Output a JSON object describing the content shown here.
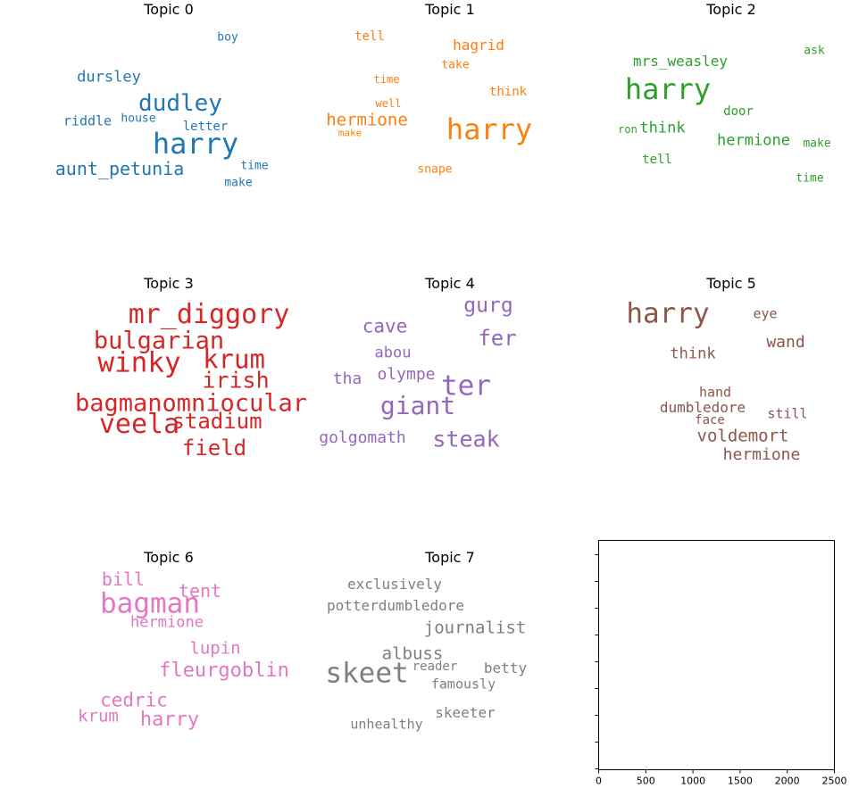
{
  "chart_data": [
    {
      "type": "wordcloud",
      "title": "Topic 0",
      "color": "#1f77b4",
      "words": [
        {
          "text": "harry",
          "size": 32
        },
        {
          "text": "dudley",
          "size": 26
        },
        {
          "text": "aunt_petunia",
          "size": 20
        },
        {
          "text": "dursley",
          "size": 17
        },
        {
          "text": "riddle",
          "size": 15
        },
        {
          "text": "letter",
          "size": 14
        },
        {
          "text": "house",
          "size": 13
        },
        {
          "text": "boy",
          "size": 13
        },
        {
          "text": "time",
          "size": 13
        },
        {
          "text": "make",
          "size": 13
        }
      ]
    },
    {
      "type": "wordcloud",
      "title": "Topic 1",
      "color": "#ff7f0e",
      "words": [
        {
          "text": "harry",
          "size": 32
        },
        {
          "text": "hermione",
          "size": 19
        },
        {
          "text": "hagrid",
          "size": 16
        },
        {
          "text": "think",
          "size": 14
        },
        {
          "text": "tell",
          "size": 14
        },
        {
          "text": "take",
          "size": 13
        },
        {
          "text": "snape",
          "size": 13
        },
        {
          "text": "time",
          "size": 12
        },
        {
          "text": "well",
          "size": 12
        },
        {
          "text": "make",
          "size": 11
        }
      ]
    },
    {
      "type": "wordcloud",
      "title": "Topic 2",
      "color": "#2ca02c",
      "words": [
        {
          "text": "harry",
          "size": 32
        },
        {
          "text": "hermione",
          "size": 17
        },
        {
          "text": "mrs_weasley",
          "size": 16
        },
        {
          "text": "think",
          "size": 17
        },
        {
          "text": "door",
          "size": 14
        },
        {
          "text": "tell",
          "size": 14
        },
        {
          "text": "ask",
          "size": 13
        },
        {
          "text": "make",
          "size": 13
        },
        {
          "text": "time",
          "size": 13
        },
        {
          "text": "ron",
          "size": 12
        }
      ]
    },
    {
      "type": "wordcloud",
      "title": "Topic 3",
      "color": "#d62728",
      "words": [
        {
          "text": "winky",
          "size": 31
        },
        {
          "text": "veela",
          "size": 30
        },
        {
          "text": "mr_diggory",
          "size": 30
        },
        {
          "text": "krum",
          "size": 29
        },
        {
          "text": "bulgarian",
          "size": 27
        },
        {
          "text": "bagmanomniocular",
          "size": 27
        },
        {
          "text": "irish",
          "size": 25
        },
        {
          "text": "stadium",
          "size": 24
        },
        {
          "text": "field",
          "size": 24
        }
      ]
    },
    {
      "type": "wordcloud",
      "title": "Topic 4",
      "color": "#9467bd",
      "words": [
        {
          "text": "ter",
          "size": 31
        },
        {
          "text": "giant",
          "size": 28
        },
        {
          "text": "steak",
          "size": 25
        },
        {
          "text": "fer",
          "size": 24
        },
        {
          "text": "gurg",
          "size": 23
        },
        {
          "text": "cave",
          "size": 21
        },
        {
          "text": "olympe",
          "size": 18
        },
        {
          "text": "tha",
          "size": 18
        },
        {
          "text": "abou",
          "size": 17
        },
        {
          "text": "golgomath",
          "size": 18
        }
      ]
    },
    {
      "type": "wordcloud",
      "title": "Topic 5",
      "color": "#8c564b",
      "words": [
        {
          "text": "harry",
          "size": 31
        },
        {
          "text": "voldemort",
          "size": 19
        },
        {
          "text": "hermione",
          "size": 18
        },
        {
          "text": "wand",
          "size": 18
        },
        {
          "text": "think",
          "size": 17
        },
        {
          "text": "dumbledore",
          "size": 16
        },
        {
          "text": "eye",
          "size": 15
        },
        {
          "text": "hand",
          "size": 15
        },
        {
          "text": "still",
          "size": 15
        },
        {
          "text": "face",
          "size": 14
        }
      ]
    },
    {
      "type": "wordcloud",
      "title": "Topic 6",
      "color": "#e377c2",
      "words": [
        {
          "text": "bagman",
          "size": 31
        },
        {
          "text": "fleurgoblin",
          "size": 22
        },
        {
          "text": "harry",
          "size": 22
        },
        {
          "text": "cedric",
          "size": 21
        },
        {
          "text": "tent",
          "size": 20
        },
        {
          "text": "bill",
          "size": 20
        },
        {
          "text": "krum",
          "size": 19
        },
        {
          "text": "lupin",
          "size": 19
        },
        {
          "text": "hermione",
          "size": 17
        }
      ]
    },
    {
      "type": "wordcloud",
      "title": "Topic 7",
      "color": "#7f7f7f",
      "words": [
        {
          "text": "skeet",
          "size": 31
        },
        {
          "text": "journalist",
          "size": 19
        },
        {
          "text": "albuss",
          "size": 19
        },
        {
          "text": "potterdumbledore",
          "size": 16
        },
        {
          "text": "exclusively",
          "size": 16
        },
        {
          "text": "betty",
          "size": 16
        },
        {
          "text": "skeeter",
          "size": 16
        },
        {
          "text": "famously",
          "size": 15
        },
        {
          "text": "unhealthy",
          "size": 15
        },
        {
          "text": "reader",
          "size": 14
        }
      ]
    },
    {
      "type": "empty_axes",
      "xticks": [
        "0",
        "500",
        "1000",
        "1500",
        "2000",
        "2500"
      ],
      "xlim": [
        0,
        2500
      ]
    }
  ]
}
